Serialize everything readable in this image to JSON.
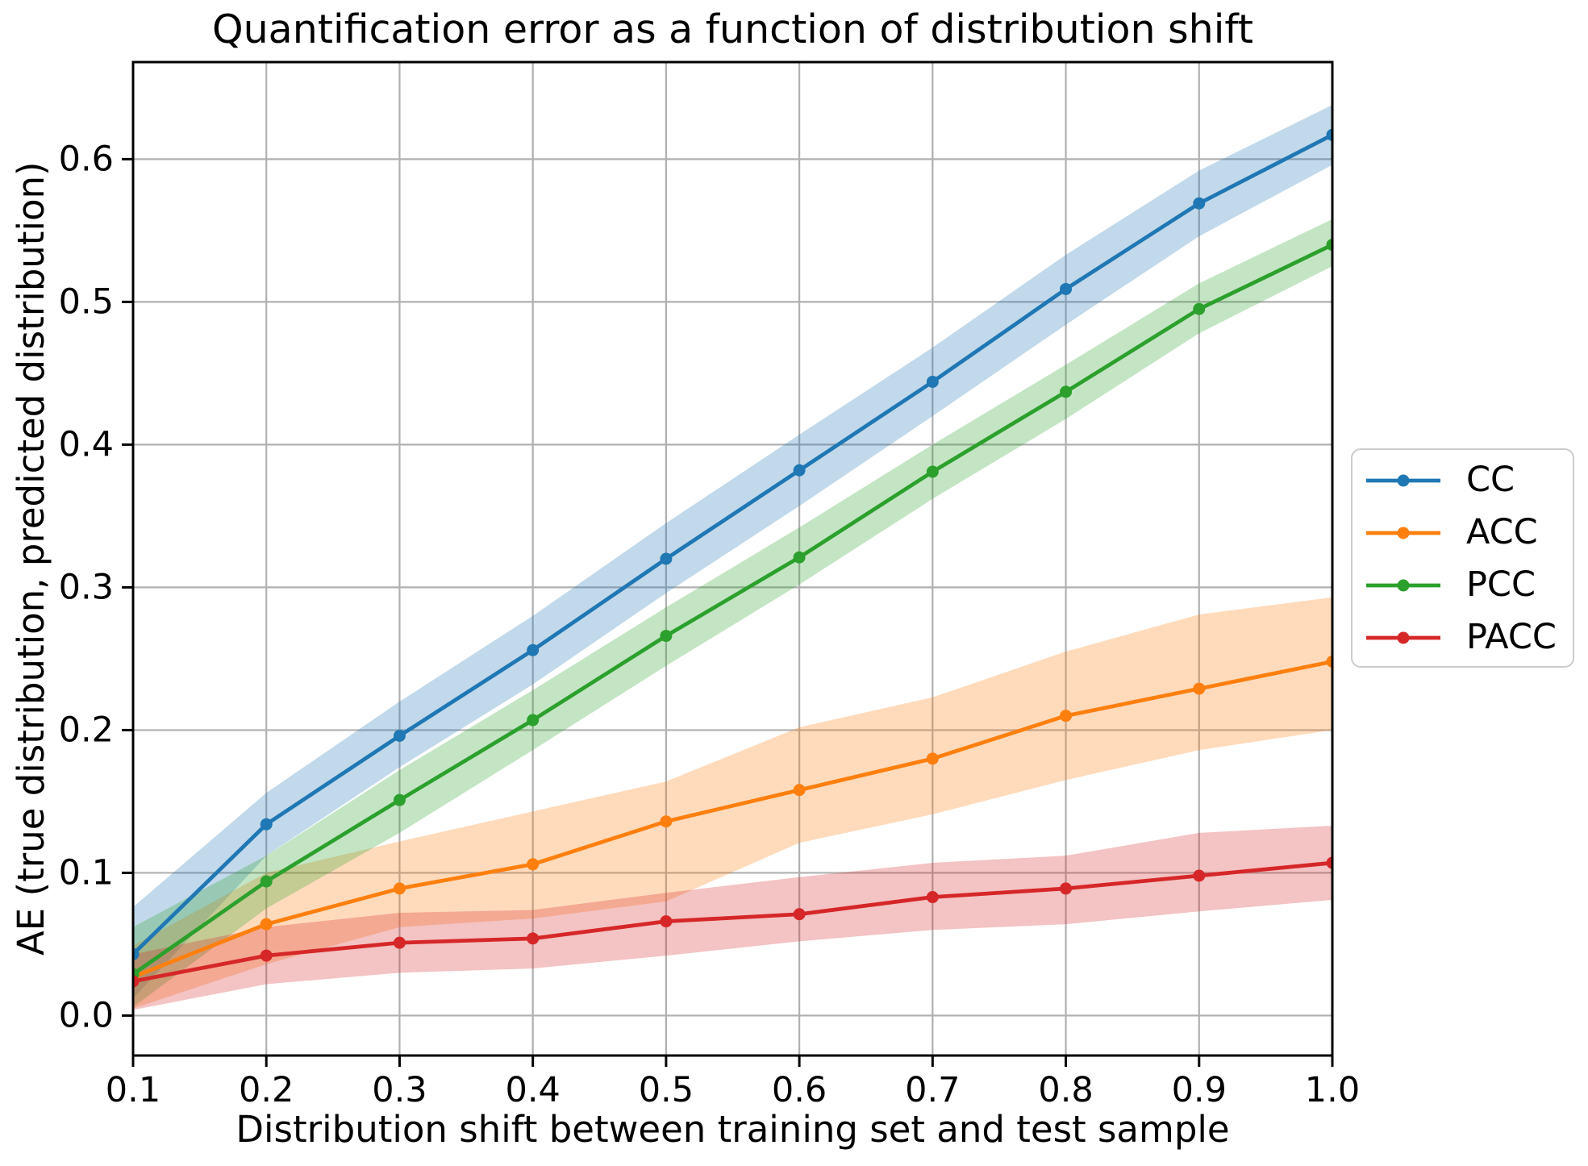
{
  "chart_data": {
    "type": "line",
    "title": "Quantification error as a function of distribution shift",
    "xlabel": "Distribution shift between training set and test sample",
    "ylabel": "AE (true distribution, predicted distribution)",
    "grid": true,
    "legend_position": "right-outside",
    "x": [
      0.1,
      0.2,
      0.3,
      0.4,
      0.5,
      0.6,
      0.7,
      0.8,
      0.9,
      1.0
    ],
    "xlim": [
      0.1,
      1.0
    ],
    "ylim": [
      -0.028,
      0.668
    ],
    "xticks": [
      "0.1",
      "0.2",
      "0.3",
      "0.4",
      "0.5",
      "0.6",
      "0.7",
      "0.8",
      "0.9",
      "1.0"
    ],
    "yticks": [
      "0.0",
      "0.1",
      "0.2",
      "0.3",
      "0.4",
      "0.5",
      "0.6"
    ],
    "grid_color": "#b0b0b0",
    "band_alpha": 0.28,
    "series": [
      {
        "name": "CC",
        "color": "#1f77b4",
        "values": [
          0.043,
          0.134,
          0.196,
          0.256,
          0.32,
          0.382,
          0.444,
          0.509,
          0.569,
          0.617
        ],
        "band_lo": [
          0.012,
          0.112,
          0.174,
          0.232,
          0.296,
          0.357,
          0.42,
          0.484,
          0.546,
          0.596
        ],
        "band_hi": [
          0.076,
          0.156,
          0.22,
          0.28,
          0.345,
          0.407,
          0.468,
          0.533,
          0.592,
          0.638
        ]
      },
      {
        "name": "ACC",
        "color": "#ff7f0e",
        "values": [
          0.027,
          0.064,
          0.089,
          0.106,
          0.136,
          0.158,
          0.18,
          0.21,
          0.229,
          0.248
        ],
        "band_lo": [
          0.005,
          0.036,
          0.062,
          0.068,
          0.08,
          0.121,
          0.141,
          0.165,
          0.186,
          0.2
        ],
        "band_hi": [
          0.049,
          0.1,
          0.122,
          0.143,
          0.164,
          0.202,
          0.223,
          0.255,
          0.281,
          0.293
        ]
      },
      {
        "name": "PCC",
        "color": "#2ca02c",
        "values": [
          0.029,
          0.094,
          0.151,
          0.207,
          0.266,
          0.321,
          0.381,
          0.437,
          0.495,
          0.54
        ],
        "band_lo": [
          0.006,
          0.075,
          0.128,
          0.186,
          0.245,
          0.302,
          0.362,
          0.418,
          0.478,
          0.525
        ],
        "band_hi": [
          0.062,
          0.112,
          0.172,
          0.228,
          0.286,
          0.342,
          0.4,
          0.456,
          0.513,
          0.558
        ]
      },
      {
        "name": "PACC",
        "color": "#d62728",
        "values": [
          0.024,
          0.042,
          0.051,
          0.054,
          0.066,
          0.071,
          0.083,
          0.089,
          0.098,
          0.107
        ],
        "band_lo": [
          0.004,
          0.022,
          0.03,
          0.033,
          0.042,
          0.052,
          0.06,
          0.064,
          0.073,
          0.081
        ],
        "band_hi": [
          0.043,
          0.062,
          0.072,
          0.074,
          0.086,
          0.097,
          0.107,
          0.112,
          0.128,
          0.133
        ]
      }
    ]
  }
}
